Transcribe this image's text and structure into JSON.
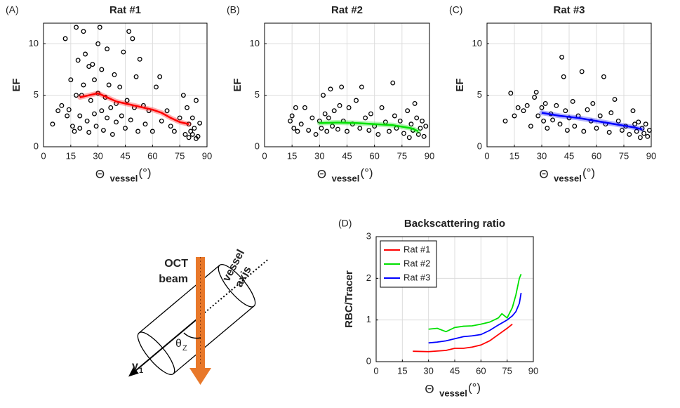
{
  "chart_data": [
    {
      "type": "scatter",
      "panel_label": "(A)",
      "title": "Rat #1",
      "ylabel": "EF",
      "xlabel": "Θ",
      "xlabel_sub": "vessel",
      "xlabel_unit": "(°)",
      "xlim": [
        0,
        90
      ],
      "ylim": [
        0,
        12
      ],
      "xticks": [
        0,
        15,
        30,
        45,
        60,
        75,
        90
      ],
      "yticks": [
        0,
        5,
        10
      ],
      "grid": true,
      "marker_color": "#000000",
      "x": [
        5,
        8,
        10,
        12,
        13,
        14,
        15,
        16,
        17,
        18,
        18,
        19,
        20,
        20,
        21,
        22,
        22,
        23,
        24,
        25,
        25,
        26,
        27,
        28,
        28,
        29,
        30,
        30,
        31,
        32,
        32,
        33,
        34,
        35,
        35,
        36,
        37,
        38,
        39,
        40,
        40,
        42,
        43,
        44,
        45,
        46,
        47,
        48,
        49,
        50,
        51,
        52,
        53,
        55,
        56,
        58,
        60,
        62,
        64,
        65,
        68,
        70,
        72,
        75,
        77,
        78,
        79,
        80,
        81,
        82,
        83,
        84,
        85,
        86,
        84,
        80,
        82
      ],
      "values": [
        2.2,
        3.5,
        4,
        10.5,
        3,
        3.6,
        6.5,
        2,
        1.5,
        5,
        11.6,
        8.4,
        3,
        1.8,
        5,
        6,
        11.2,
        9,
        2.5,
        7.8,
        1.4,
        4.5,
        8,
        3.2,
        6.5,
        2,
        10,
        5.2,
        11.6,
        3.5,
        7.5,
        1.6,
        4.8,
        9.5,
        2.8,
        6,
        3.8,
        1.2,
        7,
        4.2,
        2.4,
        5.8,
        3,
        9.2,
        1.8,
        4.5,
        11.2,
        2.6,
        10.5,
        3.8,
        6.8,
        1.5,
        8.5,
        4,
        2.2,
        3.5,
        1.5,
        5.8,
        6.8,
        2.5,
        3.5,
        2,
        1.5,
        2.8,
        5,
        1.2,
        3.8,
        2.2,
        1.5,
        2.8,
        1.8,
        4.5,
        1.0,
        2.3,
        0.8,
        0.9,
        1.2
      ],
      "trend": {
        "color": "#ff0000",
        "x": [
          20,
          25,
          30,
          35,
          40,
          45,
          50,
          55,
          60,
          65,
          70,
          75,
          80
        ],
        "values": [
          4.8,
          5,
          5.2,
          4.8,
          4.4,
          4.2,
          4.0,
          3.8,
          3.6,
          3.3,
          2.8,
          2.4,
          2.2
        ]
      }
    },
    {
      "type": "scatter",
      "panel_label": "(B)",
      "title": "Rat #2",
      "ylabel": "EF",
      "xlabel": "Θ",
      "xlabel_sub": "vessel",
      "xlabel_unit": "(°)",
      "xlim": [
        0,
        90
      ],
      "ylim": [
        0,
        12
      ],
      "xticks": [
        0,
        15,
        30,
        45,
        60,
        75,
        90
      ],
      "yticks": [
        0,
        5,
        10
      ],
      "grid": true,
      "marker_color": "#000000",
      "x": [
        14,
        15,
        16,
        17,
        18,
        20,
        22,
        24,
        26,
        28,
        30,
        31,
        32,
        33,
        34,
        35,
        36,
        37,
        38,
        40,
        41,
        42,
        43,
        45,
        46,
        48,
        50,
        52,
        53,
        55,
        57,
        58,
        60,
        62,
        64,
        66,
        68,
        70,
        71,
        72,
        74,
        76,
        78,
        79,
        80,
        81,
        82,
        83,
        84,
        85,
        86,
        87,
        88
      ],
      "values": [
        2.5,
        3,
        1.8,
        3.8,
        1.5,
        2.2,
        3.8,
        1.6,
        2.8,
        1.2,
        2.5,
        1.8,
        5,
        3.2,
        1.5,
        2.8,
        5.6,
        2,
        3.5,
        1.7,
        4,
        5.8,
        2.5,
        1.5,
        3.8,
        2.2,
        4.5,
        1.8,
        5.8,
        2.8,
        1.6,
        3.2,
        2,
        1.2,
        3.8,
        2.4,
        1.5,
        6.2,
        3,
        1.8,
        2.5,
        1.3,
        3.5,
        0.9,
        2.2,
        1.6,
        4.2,
        2.8,
        1.2,
        1.8,
        2.5,
        1.0,
        2
      ],
      "trend": {
        "color": "#00e000",
        "x": [
          30,
          40,
          50,
          60,
          70,
          80,
          84
        ],
        "values": [
          2.3,
          2.35,
          2.3,
          2.2,
          2.1,
          1.8,
          1.5
        ]
      }
    },
    {
      "type": "scatter",
      "panel_label": "(C)",
      "title": "Rat #3",
      "ylabel": "EF",
      "xlabel": "Θ",
      "xlabel_sub": "vessel",
      "xlabel_unit": "(°)",
      "xlim": [
        0,
        90
      ],
      "ylim": [
        0,
        12
      ],
      "xticks": [
        0,
        15,
        30,
        45,
        60,
        75,
        90
      ],
      "yticks": [
        0,
        5,
        10
      ],
      "grid": true,
      "marker_color": "#000000",
      "x": [
        10,
        13,
        15,
        17,
        20,
        22,
        24,
        26,
        27,
        28,
        30,
        31,
        32,
        33,
        35,
        36,
        38,
        40,
        41,
        42,
        43,
        44,
        45,
        47,
        48,
        50,
        52,
        53,
        55,
        57,
        58,
        60,
        62,
        64,
        65,
        67,
        68,
        70,
        72,
        74,
        76,
        78,
        80,
        81,
        82,
        83,
        84,
        85,
        86,
        87,
        88,
        89
      ],
      "values": [
        2.5,
        5.2,
        3,
        3.8,
        3.5,
        4,
        2,
        4.8,
        5.3,
        3,
        3.8,
        2.5,
        4.2,
        1.8,
        3.2,
        2.6,
        4,
        2.2,
        8.7,
        6.8,
        3.5,
        1.6,
        2.8,
        4.4,
        2,
        3,
        7.3,
        1.5,
        3.6,
        2.5,
        4.2,
        1.8,
        3,
        6.8,
        2.2,
        1.4,
        3.3,
        4.6,
        2.5,
        1.6,
        2,
        1.2,
        3.5,
        2.2,
        1.5,
        2.4,
        0.9,
        1.8,
        1.3,
        2.2,
        1.0,
        1.6
      ],
      "trend": {
        "color": "#0000ff",
        "x": [
          30,
          40,
          50,
          60,
          70,
          80,
          85
        ],
        "values": [
          3.3,
          3.0,
          2.8,
          2.5,
          2.2,
          1.9,
          1.7
        ]
      }
    },
    {
      "type": "line",
      "panel_label": "(D)",
      "title": "Backscattering ratio",
      "ylabel": "RBC/Tracer",
      "xlabel": "Θ",
      "xlabel_sub": "vessel",
      "xlabel_unit": "(°)",
      "xlim": [
        0,
        90
      ],
      "ylim": [
        0,
        3
      ],
      "xticks": [
        0,
        15,
        30,
        45,
        60,
        75,
        90
      ],
      "yticks": [
        0,
        1,
        2,
        3
      ],
      "grid": true,
      "legend": "upper left",
      "series": [
        {
          "name": "Rat #1",
          "color": "#ff0000",
          "x": [
            21,
            30,
            40,
            45,
            50,
            55,
            60,
            65,
            70,
            75,
            78
          ],
          "values": [
            0.25,
            0.24,
            0.27,
            0.32,
            0.32,
            0.35,
            0.4,
            0.5,
            0.65,
            0.8,
            0.9
          ]
        },
        {
          "name": "Rat #2",
          "color": "#00e000",
          "x": [
            30,
            35,
            40,
            45,
            50,
            55,
            60,
            65,
            70,
            72,
            75,
            78,
            80,
            82,
            83
          ],
          "values": [
            0.78,
            0.8,
            0.72,
            0.82,
            0.85,
            0.86,
            0.9,
            0.95,
            1.05,
            1.15,
            1.05,
            1.3,
            1.6,
            2.0,
            2.1
          ]
        },
        {
          "name": "Rat #3",
          "color": "#0000ff",
          "x": [
            30,
            35,
            40,
            45,
            50,
            55,
            60,
            65,
            70,
            75,
            78,
            80,
            82,
            83
          ],
          "values": [
            0.45,
            0.47,
            0.5,
            0.55,
            0.6,
            0.62,
            0.65,
            0.75,
            0.88,
            1.0,
            1.1,
            1.2,
            1.4,
            1.65
          ]
        }
      ]
    }
  ],
  "diagram": {
    "beam_label": [
      "OCT",
      "beam"
    ],
    "axis_label": [
      "vessel",
      "axis"
    ],
    "velocity_label": "v",
    "velocity_sub": "1",
    "angle_label": "θ",
    "angle_sub": "Z"
  }
}
